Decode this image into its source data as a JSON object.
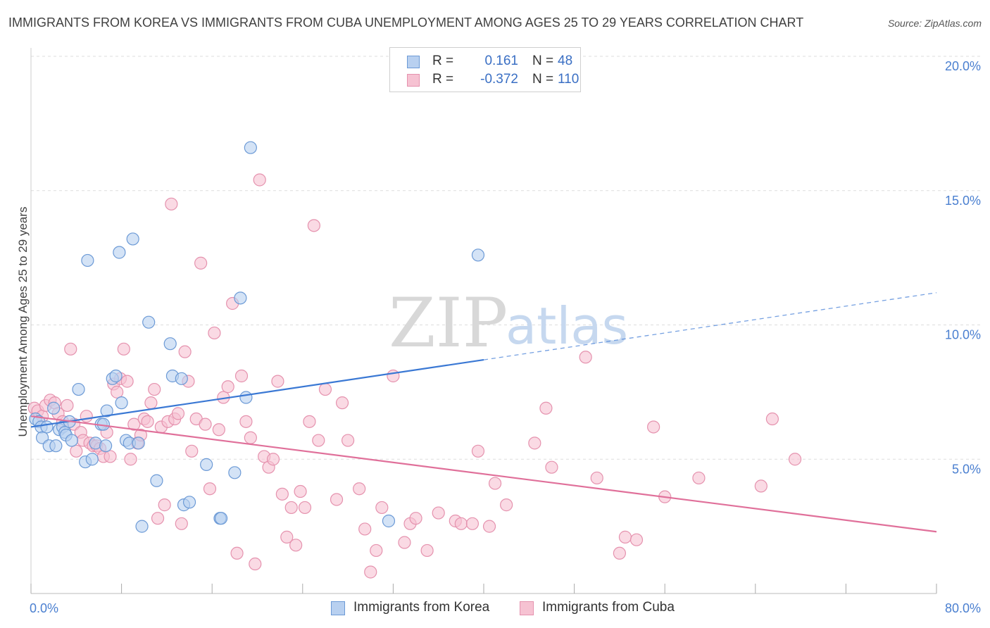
{
  "header": {
    "title": "IMMIGRANTS FROM KOREA VS IMMIGRANTS FROM CUBA UNEMPLOYMENT AMONG AGES 25 TO 29 YEARS CORRELATION CHART",
    "source": "Source: ZipAtlas.com"
  },
  "watermark": {
    "zip": "ZIP",
    "atlas": "atlas"
  },
  "legend": {
    "r_label": "R =",
    "n_label": "N =",
    "korea": {
      "r": "0.161",
      "n": "48"
    },
    "cuba": {
      "r": "-0.372",
      "n": "110"
    }
  },
  "colors": {
    "korea_fill": "#b8d0f0",
    "korea_stroke": "#6c9ad6",
    "korea_line": "#3a78d4",
    "cuba_fill": "#f6c2d2",
    "cuba_stroke": "#e592ae",
    "cuba_line": "#e0709a",
    "grid": "#dddddd"
  },
  "chart_data": {
    "type": "scatter",
    "ylabel": "Unemployment Among Ages 25 to 29 years",
    "xlim": [
      0,
      80
    ],
    "ylim": [
      0,
      20
    ],
    "x_tick_labels": [
      {
        "value": 0,
        "label": "0.0%"
      },
      {
        "value": 80,
        "label": "80.0%"
      }
    ],
    "y_tick_labels": [
      {
        "value": 5,
        "label": "5.0%"
      },
      {
        "value": 10,
        "label": "10.0%"
      },
      {
        "value": 15,
        "label": "15.0%"
      },
      {
        "value": 20,
        "label": "20.0%"
      }
    ],
    "grid": true,
    "legend_position": "top-center",
    "series": [
      {
        "name": "Immigrants from Korea",
        "points": [
          [
            0.4,
            6.5
          ],
          [
            0.7,
            6.4
          ],
          [
            0.9,
            6.2
          ],
          [
            1.0,
            5.8
          ],
          [
            1.4,
            6.2
          ],
          [
            1.6,
            5.5
          ],
          [
            2.0,
            6.9
          ],
          [
            2.2,
            5.5
          ],
          [
            2.5,
            6.1
          ],
          [
            2.8,
            6.2
          ],
          [
            3.0,
            6.0
          ],
          [
            3.1,
            5.9
          ],
          [
            3.4,
            6.4
          ],
          [
            3.6,
            5.7
          ],
          [
            4.2,
            7.6
          ],
          [
            4.8,
            4.9
          ],
          [
            5.0,
            12.4
          ],
          [
            5.4,
            5.0
          ],
          [
            5.7,
            5.6
          ],
          [
            6.2,
            6.3
          ],
          [
            6.4,
            6.3
          ],
          [
            6.6,
            5.5
          ],
          [
            6.7,
            6.8
          ],
          [
            7.2,
            8.0
          ],
          [
            7.5,
            8.1
          ],
          [
            7.8,
            12.7
          ],
          [
            8.0,
            7.1
          ],
          [
            8.4,
            5.7
          ],
          [
            8.7,
            5.6
          ],
          [
            9.0,
            13.2
          ],
          [
            9.5,
            5.6
          ],
          [
            9.8,
            2.5
          ],
          [
            10.4,
            10.1
          ],
          [
            11.1,
            4.2
          ],
          [
            12.3,
            9.3
          ],
          [
            12.5,
            8.1
          ],
          [
            13.3,
            8.0
          ],
          [
            13.5,
            3.3
          ],
          [
            14.0,
            3.4
          ],
          [
            15.5,
            4.8
          ],
          [
            16.7,
            2.8
          ],
          [
            16.8,
            2.8
          ],
          [
            18.0,
            4.5
          ],
          [
            18.5,
            11.0
          ],
          [
            19.0,
            7.3
          ],
          [
            19.4,
            16.6
          ],
          [
            31.6,
            2.7
          ],
          [
            39.5,
            12.6
          ]
        ]
      },
      {
        "name": "Immigrants from Cuba",
        "points": [
          [
            0.3,
            6.9
          ],
          [
            0.6,
            6.8
          ],
          [
            1.0,
            6.6
          ],
          [
            1.3,
            7.0
          ],
          [
            1.7,
            7.2
          ],
          [
            2.1,
            7.1
          ],
          [
            2.4,
            6.7
          ],
          [
            2.8,
            6.4
          ],
          [
            3.2,
            7.0
          ],
          [
            3.5,
            9.1
          ],
          [
            3.8,
            6.3
          ],
          [
            4.0,
            5.3
          ],
          [
            4.4,
            6.0
          ],
          [
            4.6,
            5.7
          ],
          [
            4.9,
            6.6
          ],
          [
            5.2,
            5.6
          ],
          [
            5.5,
            5.5
          ],
          [
            5.8,
            5.5
          ],
          [
            6.1,
            5.4
          ],
          [
            6.4,
            5.1
          ],
          [
            6.7,
            6.0
          ],
          [
            7.0,
            5.1
          ],
          [
            7.3,
            7.8
          ],
          [
            7.6,
            7.5
          ],
          [
            7.9,
            8.0
          ],
          [
            8.2,
            9.1
          ],
          [
            8.5,
            7.9
          ],
          [
            8.8,
            5.0
          ],
          [
            9.1,
            6.3
          ],
          [
            9.4,
            5.6
          ],
          [
            9.7,
            5.9
          ],
          [
            10.0,
            6.5
          ],
          [
            10.3,
            6.4
          ],
          [
            10.6,
            7.1
          ],
          [
            10.9,
            7.6
          ],
          [
            11.2,
            2.8
          ],
          [
            11.5,
            6.2
          ],
          [
            11.8,
            3.3
          ],
          [
            12.1,
            6.4
          ],
          [
            12.4,
            14.5
          ],
          [
            12.7,
            6.5
          ],
          [
            13.0,
            6.7
          ],
          [
            13.3,
            2.6
          ],
          [
            13.6,
            9.0
          ],
          [
            13.9,
            7.9
          ],
          [
            14.2,
            5.3
          ],
          [
            14.6,
            6.5
          ],
          [
            15.0,
            12.3
          ],
          [
            15.4,
            6.3
          ],
          [
            15.8,
            3.9
          ],
          [
            16.2,
            9.7
          ],
          [
            16.6,
            6.1
          ],
          [
            17.0,
            7.3
          ],
          [
            17.4,
            7.7
          ],
          [
            17.8,
            10.8
          ],
          [
            18.2,
            1.5
          ],
          [
            18.6,
            8.1
          ],
          [
            19.0,
            6.4
          ],
          [
            19.4,
            5.8
          ],
          [
            19.8,
            1.1
          ],
          [
            20.2,
            15.4
          ],
          [
            20.6,
            5.1
          ],
          [
            21.0,
            4.7
          ],
          [
            21.4,
            5.0
          ],
          [
            21.8,
            7.9
          ],
          [
            22.2,
            3.7
          ],
          [
            22.6,
            2.1
          ],
          [
            23.0,
            3.2
          ],
          [
            23.4,
            1.8
          ],
          [
            23.8,
            3.8
          ],
          [
            24.2,
            3.2
          ],
          [
            24.6,
            6.4
          ],
          [
            25.0,
            13.7
          ],
          [
            25.4,
            5.7
          ],
          [
            26.0,
            7.6
          ],
          [
            27.0,
            3.5
          ],
          [
            27.5,
            7.1
          ],
          [
            28.0,
            5.7
          ],
          [
            29.0,
            3.9
          ],
          [
            29.5,
            2.4
          ],
          [
            30.0,
            0.8
          ],
          [
            30.5,
            1.6
          ],
          [
            31.0,
            3.2
          ],
          [
            32.0,
            8.1
          ],
          [
            33.0,
            1.9
          ],
          [
            33.5,
            2.6
          ],
          [
            34.0,
            2.8
          ],
          [
            35.0,
            1.6
          ],
          [
            36.0,
            3.0
          ],
          [
            37.5,
            2.7
          ],
          [
            38.0,
            2.6
          ],
          [
            39.0,
            2.6
          ],
          [
            39.5,
            5.3
          ],
          [
            40.5,
            2.5
          ],
          [
            41.0,
            4.1
          ],
          [
            42.0,
            3.3
          ],
          [
            44.5,
            5.6
          ],
          [
            45.5,
            6.9
          ],
          [
            46.0,
            4.7
          ],
          [
            49.0,
            8.8
          ],
          [
            50.0,
            4.3
          ],
          [
            52.0,
            1.5
          ],
          [
            52.5,
            2.1
          ],
          [
            53.5,
            2.0
          ],
          [
            55.0,
            6.2
          ],
          [
            56.0,
            3.6
          ],
          [
            59.0,
            4.3
          ],
          [
            64.5,
            4.0
          ],
          [
            65.5,
            6.5
          ],
          [
            67.5,
            5.0
          ]
        ]
      }
    ],
    "trend_lines": [
      {
        "series": "Immigrants from Korea",
        "solid_x": [
          0,
          40
        ],
        "dashed_x": [
          40,
          80
        ],
        "y_at_0": 6.2,
        "y_at_80": 11.2
      },
      {
        "series": "Immigrants from Cuba",
        "solid_x": [
          0,
          80
        ],
        "y_at_0": 6.6,
        "y_at_80": 2.3
      }
    ]
  }
}
